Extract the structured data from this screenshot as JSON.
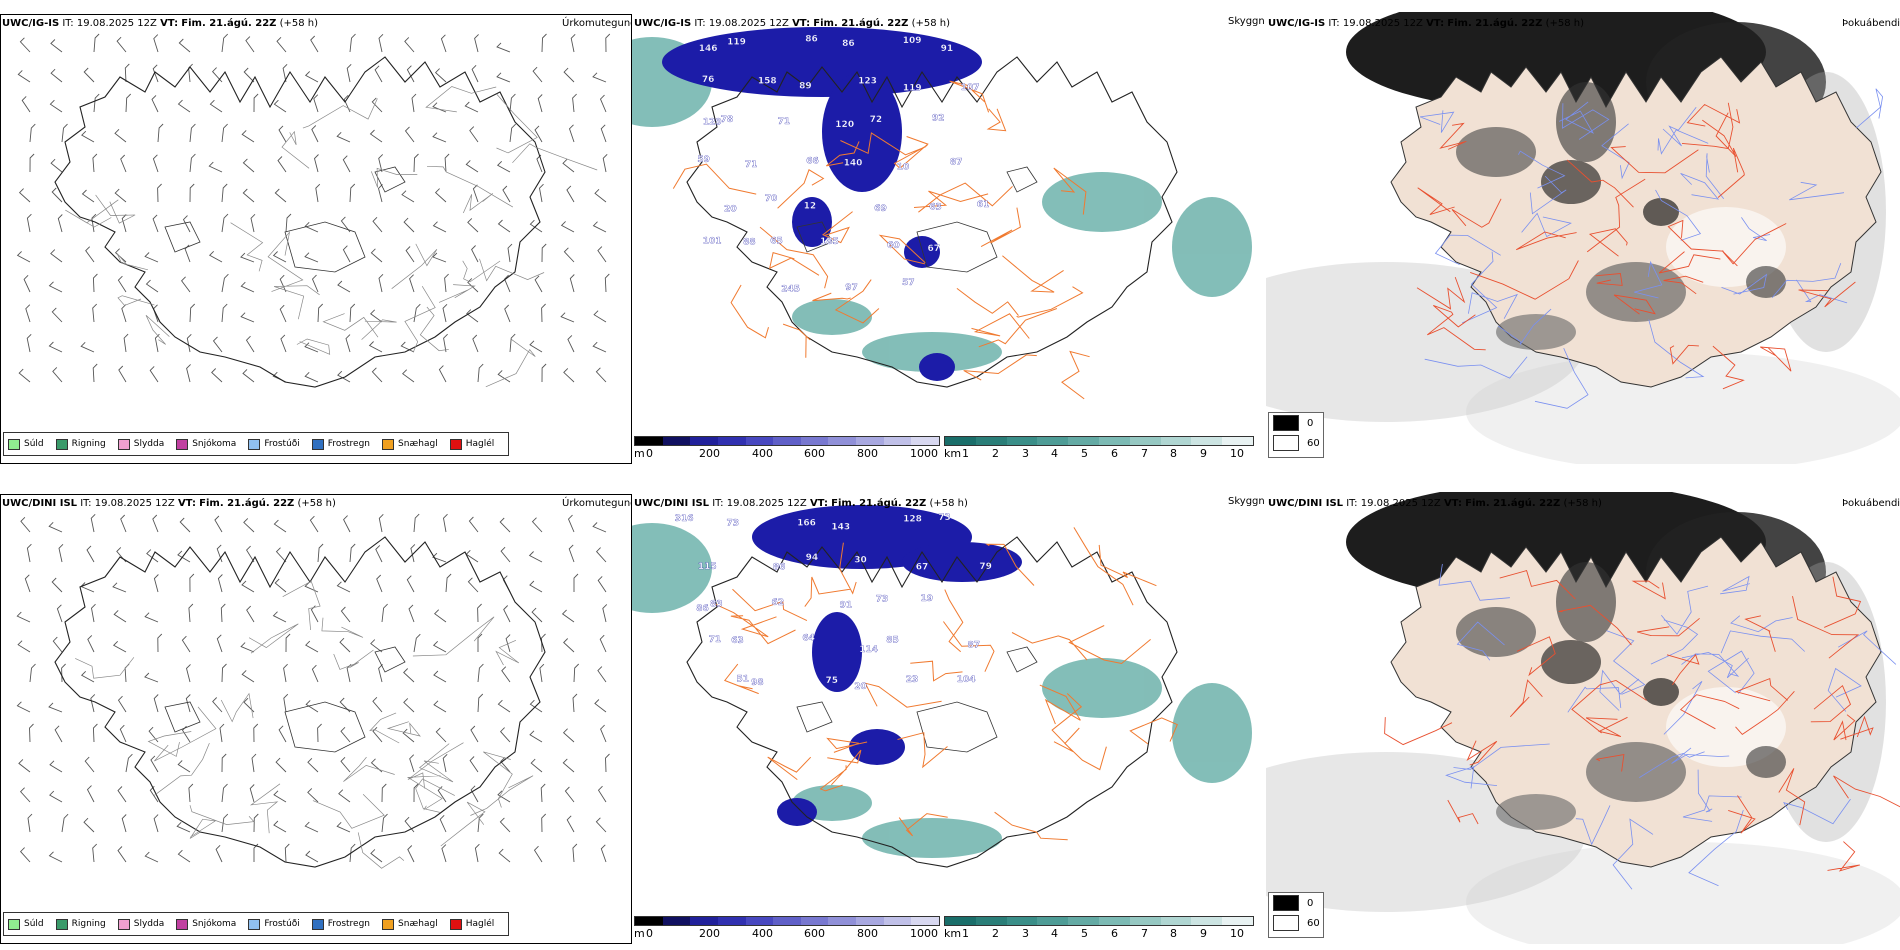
{
  "rows": [
    {
      "model_label": "UWC/IG-IS",
      "it_label": "IT:",
      "it_value": "19.08.2025 12Z",
      "vt_label": "VT:",
      "vt_value": "Fim. 21.ágú. 22Z",
      "lead": "(+58 h)",
      "cloud_numbers": [
        "146",
        "119",
        "86",
        "86",
        "109",
        "91",
        "76",
        "158",
        "89",
        "123",
        "119",
        "107",
        "78",
        "71",
        "120",
        "72",
        "92",
        "129",
        "71",
        "66",
        "140",
        "10",
        "87",
        "59",
        "70",
        "12",
        "69",
        "63",
        "61",
        "20",
        "65",
        "185",
        "60",
        "67",
        "101",
        "88",
        "245",
        "97",
        "57"
      ]
    },
    {
      "model_label": "UWC/DINI ISL",
      "it_label": "IT:",
      "it_value": "19.08.2025 12Z",
      "vt_label": "VT:",
      "vt_value": "Fim. 21.ágú. 22Z",
      "lead": "(+58 h)",
      "cloud_numbers": [
        "316",
        "73",
        "166",
        "143",
        "128",
        "73",
        "115",
        "86",
        "94",
        "30",
        "67",
        "79",
        "83",
        "62",
        "91",
        "73",
        "19",
        "86",
        "63",
        "64",
        "114",
        "85",
        "87",
        "71",
        "98",
        "75",
        "20",
        "23",
        "104",
        "51"
      ]
    }
  ],
  "titles": {
    "precip_type": "Úrkomutegund",
    "visibility": "Skyggni",
    "fog": "Þokuábendi"
  },
  "precip_legend": [
    {
      "label": "Súld",
      "color": "#90ee90"
    },
    {
      "label": "Rigning",
      "color": "#3a9a6a"
    },
    {
      "label": "Slydda",
      "color": "#f0a0d0"
    },
    {
      "label": "Snjókoma",
      "color": "#c040a0"
    },
    {
      "label": "Frostúði",
      "color": "#90c0f0"
    },
    {
      "label": "Frostregn",
      "color": "#3070c0"
    },
    {
      "label": "Snæhagl",
      "color": "#f0a020"
    },
    {
      "label": "Haglél",
      "color": "#e01010"
    }
  ],
  "cloud_base_scale": {
    "unit": "m",
    "ticks": [
      "0",
      "200",
      "400",
      "600",
      "800",
      "1000"
    ],
    "colors": [
      "#000000",
      "#101060",
      "#20209a",
      "#3030b0",
      "#4848c0",
      "#6060c8",
      "#7878d0",
      "#9090d8",
      "#a8a8e0",
      "#c0c0e8",
      "#d8d8f0"
    ]
  },
  "visibility_scale": {
    "unit": "km",
    "ticks": [
      "1",
      "2",
      "3",
      "4",
      "5",
      "6",
      "7",
      "8",
      "9",
      "10"
    ],
    "colors": [
      "#1a6e6a",
      "#2a7e78",
      "#3a8e88",
      "#4e9c96",
      "#64aaa4",
      "#7cbab4",
      "#96c8c2",
      "#b0d6d2",
      "#cce4e2",
      "#e8f2f2"
    ]
  },
  "fog_scale": {
    "items": [
      {
        "label": "0",
        "color": "#000000"
      },
      {
        "label": "60",
        "color": "#ffffff"
      }
    ]
  },
  "colors": {
    "land_fog": "#f1e1d4",
    "roads": "#f07a30",
    "rivers": "#7a90f0",
    "cloud_base": "#1c1ca8",
    "visibility": "#5aa8a0"
  }
}
